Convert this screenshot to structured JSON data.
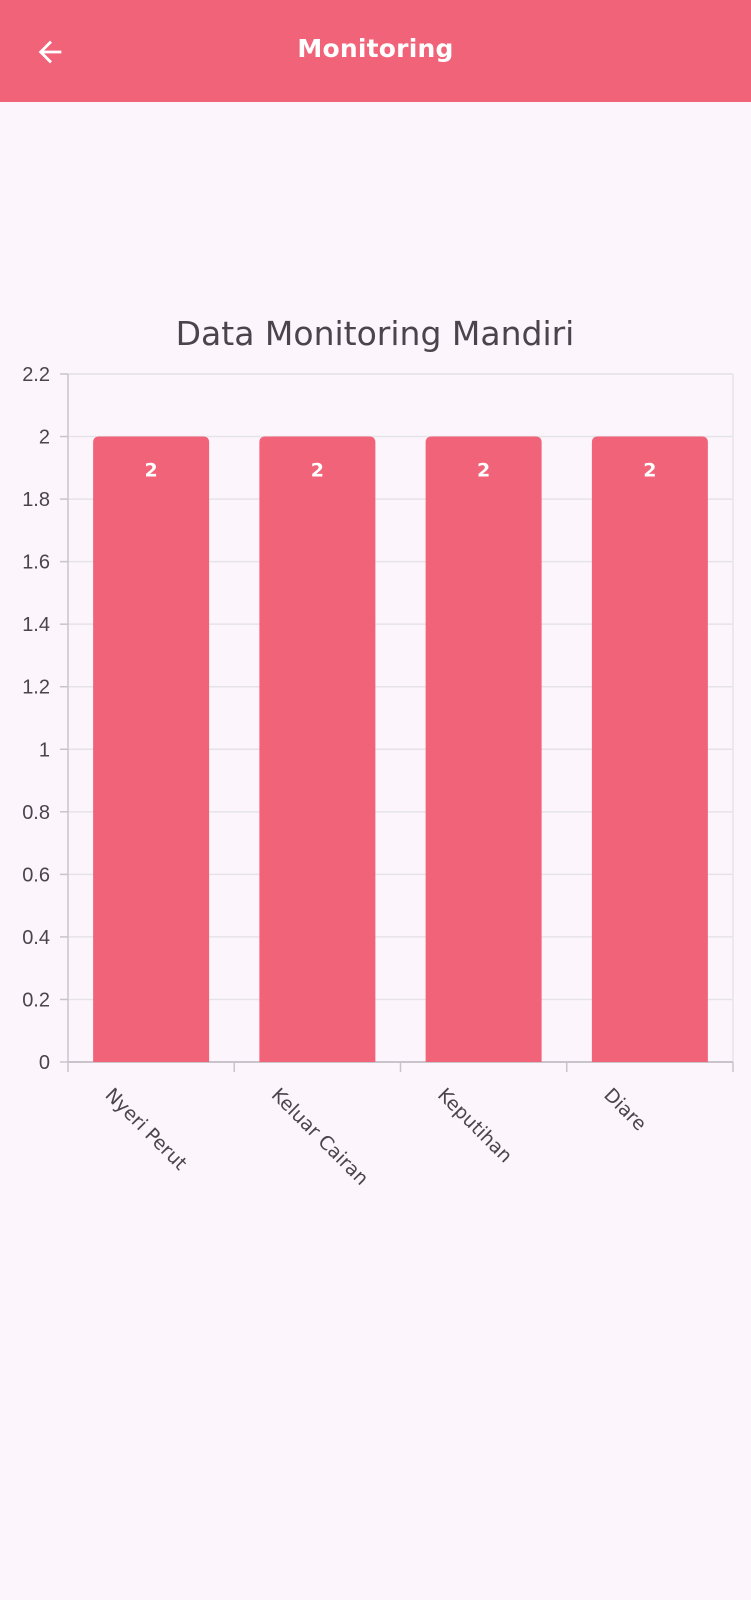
{
  "app_bar": {
    "title": "Monitoring",
    "back_icon": "arrow-left-icon"
  },
  "colors": {
    "primary": "#F06378",
    "background": "#FCF6FC",
    "grid": "#E6E3E8",
    "axis": "#C9C4CB",
    "text": "#4A454C"
  },
  "chart_data": {
    "type": "bar",
    "title": "Data Monitoring Mandiri",
    "categories": [
      "Nyeri Perut",
      "Keluar Cairan",
      "Keputihan",
      "Diare"
    ],
    "values": [
      2,
      2,
      2,
      2
    ],
    "data_labels": [
      "2",
      "2",
      "2",
      "2"
    ],
    "ylim": [
      0,
      2.2
    ],
    "yticks": [
      "0",
      "0.2",
      "0.4",
      "0.6",
      "0.8",
      "1",
      "1.2",
      "1.4",
      "1.6",
      "1.8",
      "2",
      "2.2"
    ],
    "xlabel": "",
    "ylabel": "",
    "grid": true
  }
}
